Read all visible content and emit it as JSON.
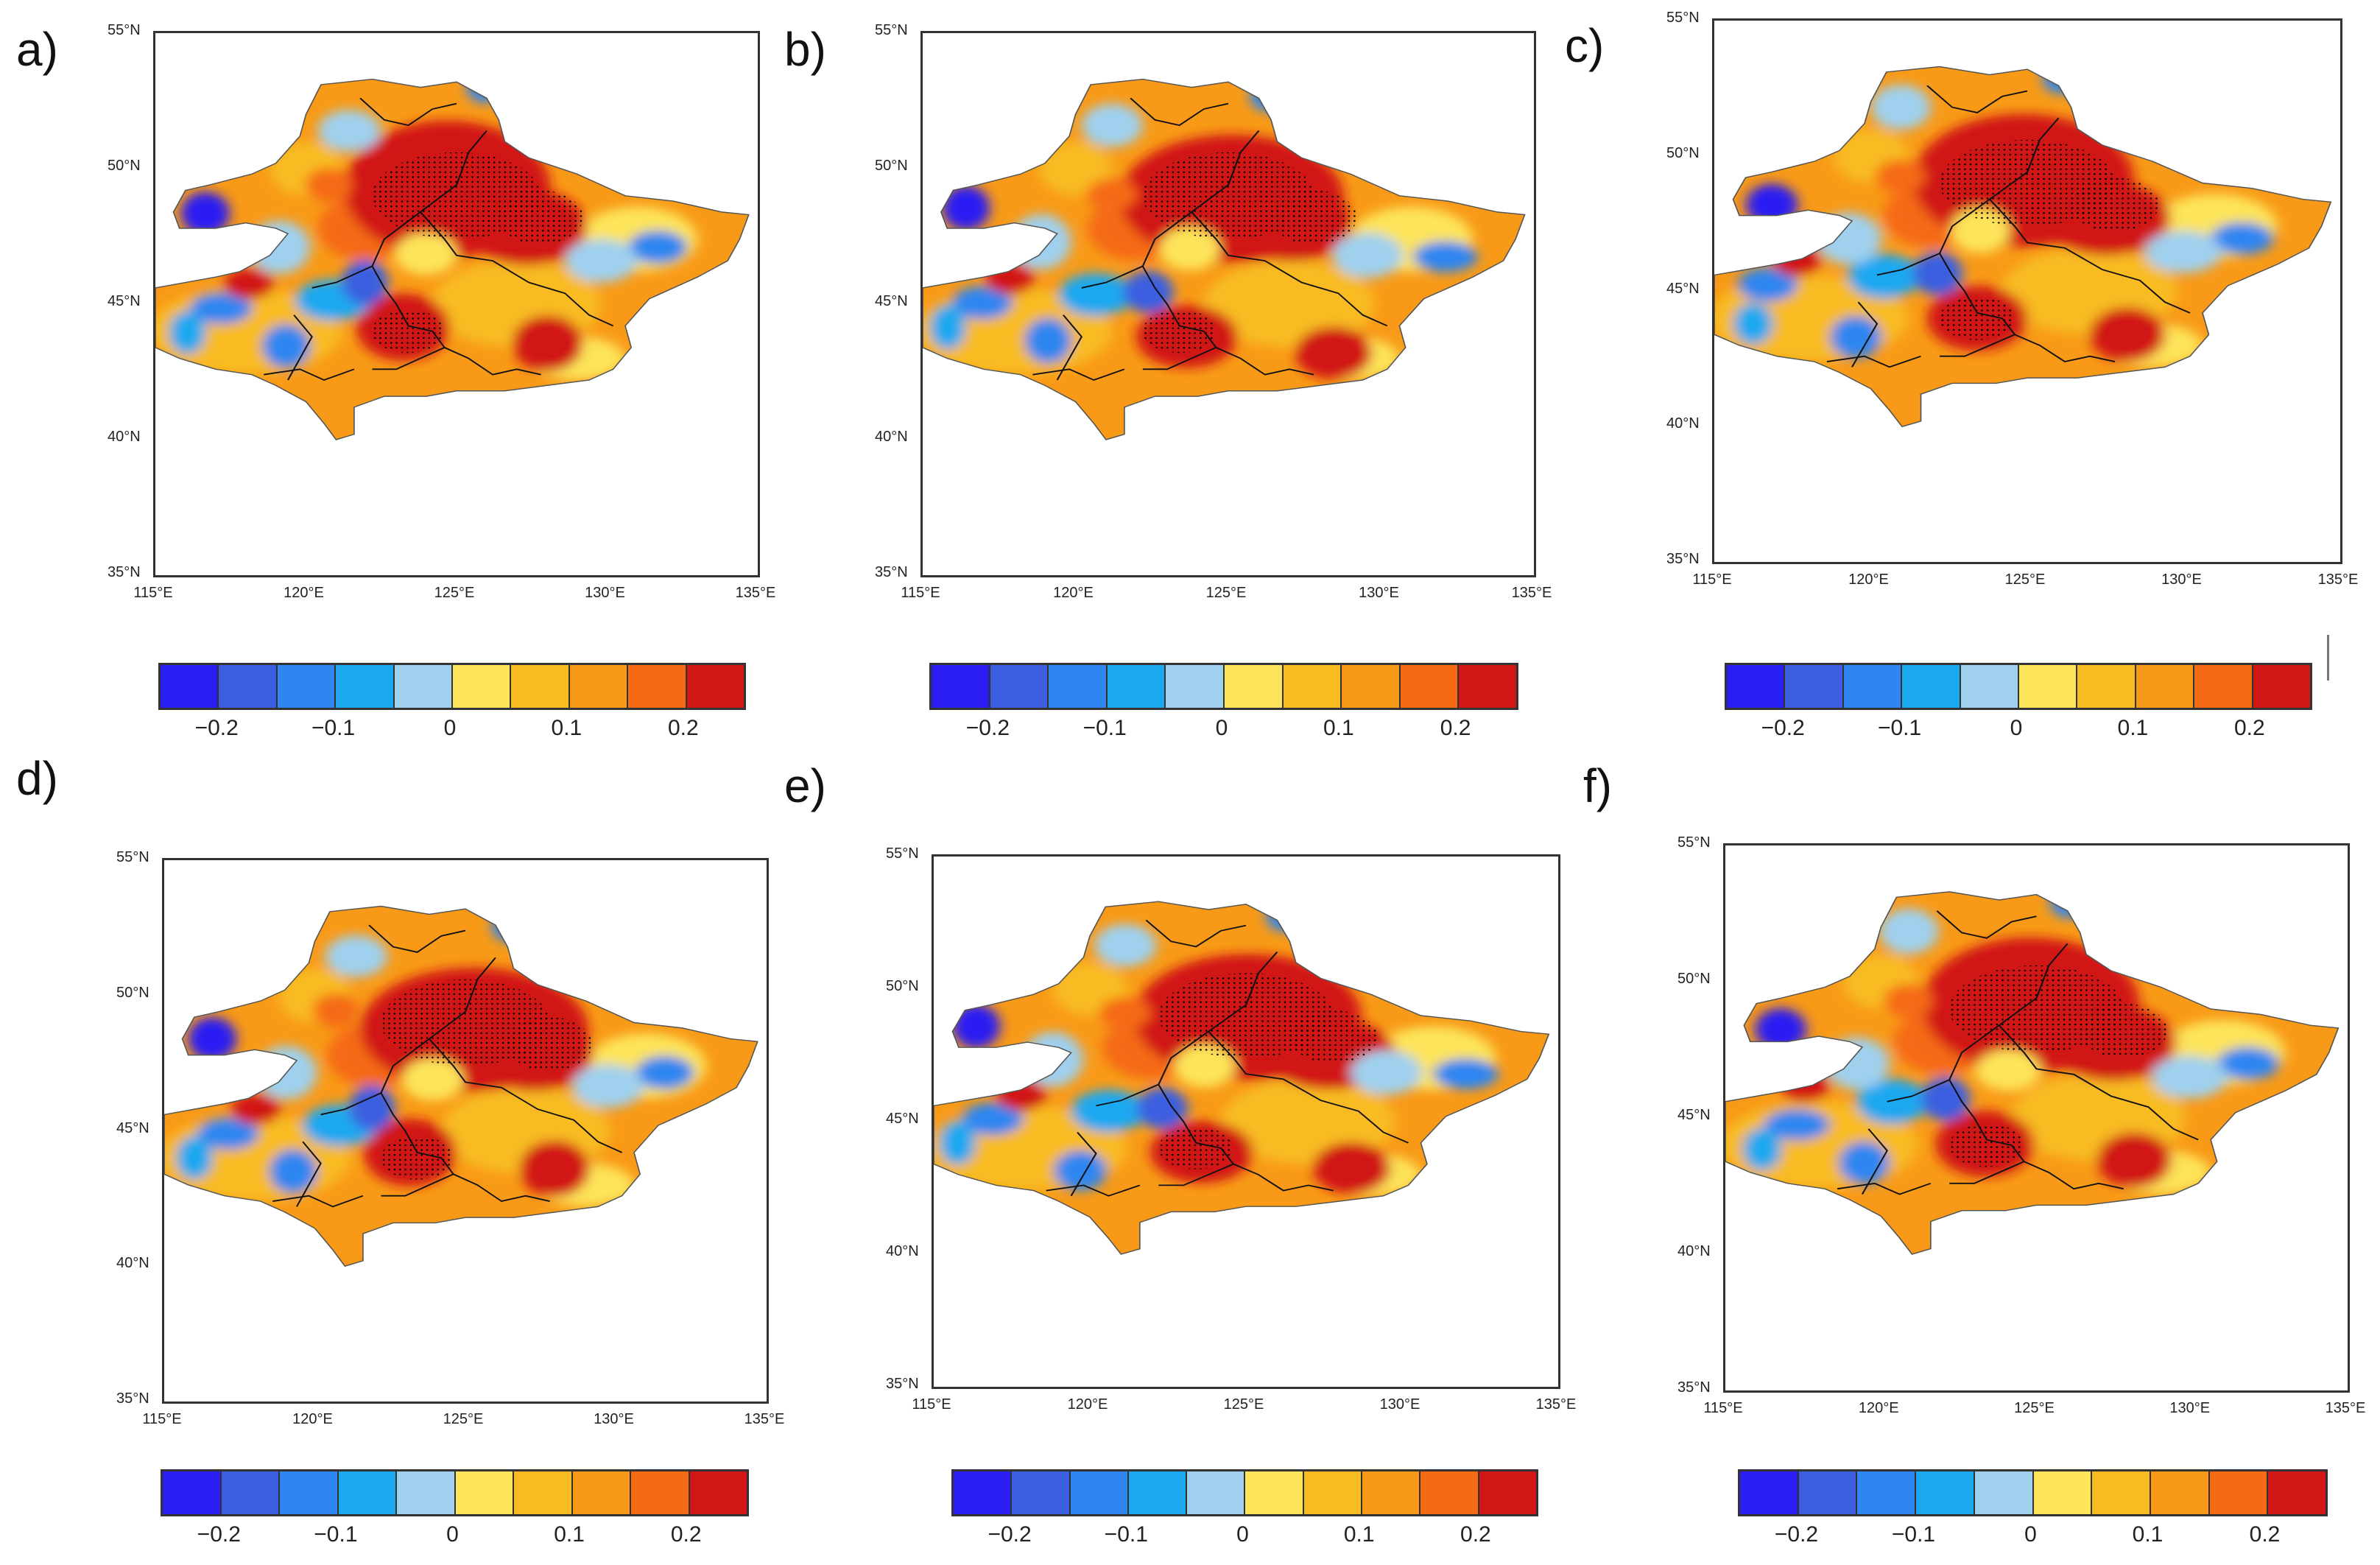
{
  "panels": [
    {
      "label": "a)"
    },
    {
      "label": "b)"
    },
    {
      "label": "c)"
    },
    {
      "label": "d)"
    },
    {
      "label": "e)"
    },
    {
      "label": "f)"
    }
  ],
  "lat_ticks": [
    "55°N",
    "50°N",
    "45°N",
    "40°N",
    "35°N"
  ],
  "lon_ticks": [
    "115°E",
    "120°E",
    "125°E",
    "130°E",
    "135°E"
  ],
  "colorbar": {
    "colors": [
      "#2a1ef2",
      "#3b5fe0",
      "#2f86f0",
      "#1aa8f0",
      "#9fd0ee",
      "#fde45a",
      "#f8bb22",
      "#f89a17",
      "#f56a12",
      "#d11616"
    ],
    "labels": [
      "−0.2",
      "−0.1",
      "0",
      "0.1",
      "0.2"
    ]
  }
}
